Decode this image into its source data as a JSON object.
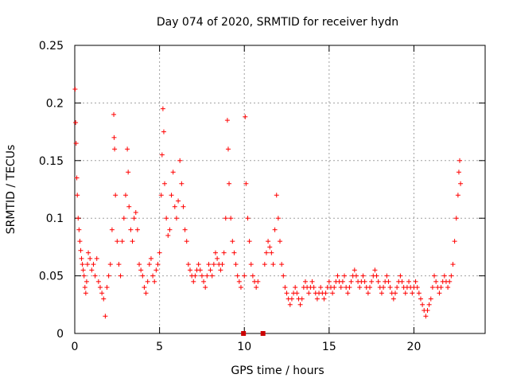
{
  "chart_data": {
    "type": "scatter",
    "title": "Day 074 of 2020, SRMTID for receiver hydn",
    "xlabel": "GPS time / hours",
    "ylabel": "SRMTID / TECUs",
    "xlim": [
      0,
      24.2
    ],
    "ylim": [
      0,
      0.25
    ],
    "grid": true,
    "x_ticks": [
      0,
      5,
      10,
      15,
      20
    ],
    "x_tick_labels": [
      "0",
      "5",
      "10",
      "15",
      "20"
    ],
    "y_ticks": [
      0,
      0.05,
      0.1,
      0.15,
      0.2,
      0.25
    ],
    "y_tick_labels": [
      "0",
      "0.05",
      "0.1",
      "0.15",
      "0.2",
      "0.25"
    ],
    "marker": "+",
    "series_color": "#ff0000",
    "gap_marker_color": "#cc0000",
    "data_gaps_hours": [
      9.95,
      11.1
    ],
    "series": [
      {
        "name": "SRMTID",
        "points": [
          [
            0.02,
            0.212
          ],
          [
            0.05,
            0.183
          ],
          [
            0.08,
            0.165
          ],
          [
            0.12,
            0.135
          ],
          [
            0.15,
            0.12
          ],
          [
            0.2,
            0.1
          ],
          [
            0.25,
            0.09
          ],
          [
            0.3,
            0.08
          ],
          [
            0.35,
            0.072
          ],
          [
            0.4,
            0.065
          ],
          [
            0.45,
            0.06
          ],
          [
            0.5,
            0.055
          ],
          [
            0.55,
            0.05
          ],
          [
            0.6,
            0.04
          ],
          [
            0.65,
            0.035
          ],
          [
            0.7,
            0.045
          ],
          [
            0.75,
            0.06
          ],
          [
            0.8,
            0.07
          ],
          [
            0.9,
            0.065
          ],
          [
            1.0,
            0.055
          ],
          [
            1.1,
            0.06
          ],
          [
            1.2,
            0.05
          ],
          [
            1.3,
            0.065
          ],
          [
            1.4,
            0.045
          ],
          [
            1.5,
            0.04
          ],
          [
            1.6,
            0.035
          ],
          [
            1.7,
            0.03
          ],
          [
            1.8,
            0.015
          ],
          [
            1.9,
            0.04
          ],
          [
            2.0,
            0.05
          ],
          [
            2.1,
            0.06
          ],
          [
            2.2,
            0.09
          ],
          [
            2.3,
            0.19
          ],
          [
            2.32,
            0.17
          ],
          [
            2.35,
            0.16
          ],
          [
            2.4,
            0.12
          ],
          [
            2.5,
            0.08
          ],
          [
            2.6,
            0.06
          ],
          [
            2.7,
            0.05
          ],
          [
            2.8,
            0.08
          ],
          [
            2.9,
            0.1
          ],
          [
            3.0,
            0.12
          ],
          [
            3.1,
            0.16
          ],
          [
            3.15,
            0.14
          ],
          [
            3.2,
            0.11
          ],
          [
            3.3,
            0.09
          ],
          [
            3.4,
            0.08
          ],
          [
            3.5,
            0.1
          ],
          [
            3.6,
            0.105
          ],
          [
            3.7,
            0.09
          ],
          [
            3.8,
            0.06
          ],
          [
            3.9,
            0.055
          ],
          [
            4.0,
            0.05
          ],
          [
            4.1,
            0.04
          ],
          [
            4.2,
            0.035
          ],
          [
            4.3,
            0.045
          ],
          [
            4.4,
            0.06
          ],
          [
            4.5,
            0.065
          ],
          [
            4.6,
            0.05
          ],
          [
            4.7,
            0.045
          ],
          [
            4.8,
            0.055
          ],
          [
            4.9,
            0.06
          ],
          [
            5.0,
            0.07
          ],
          [
            5.1,
            0.12
          ],
          [
            5.15,
            0.155
          ],
          [
            5.2,
            0.195
          ],
          [
            5.25,
            0.175
          ],
          [
            5.3,
            0.13
          ],
          [
            5.4,
            0.1
          ],
          [
            5.5,
            0.085
          ],
          [
            5.6,
            0.09
          ],
          [
            5.7,
            0.12
          ],
          [
            5.8,
            0.14
          ],
          [
            5.9,
            0.11
          ],
          [
            6.0,
            0.1
          ],
          [
            6.1,
            0.115
          ],
          [
            6.2,
            0.15
          ],
          [
            6.3,
            0.13
          ],
          [
            6.4,
            0.11
          ],
          [
            6.5,
            0.09
          ],
          [
            6.6,
            0.08
          ],
          [
            6.7,
            0.06
          ],
          [
            6.8,
            0.055
          ],
          [
            6.9,
            0.05
          ],
          [
            7.0,
            0.045
          ],
          [
            7.1,
            0.05
          ],
          [
            7.2,
            0.055
          ],
          [
            7.3,
            0.06
          ],
          [
            7.4,
            0.055
          ],
          [
            7.5,
            0.05
          ],
          [
            7.6,
            0.045
          ],
          [
            7.7,
            0.04
          ],
          [
            7.8,
            0.05
          ],
          [
            7.9,
            0.06
          ],
          [
            8.0,
            0.055
          ],
          [
            8.1,
            0.05
          ],
          [
            8.2,
            0.06
          ],
          [
            8.3,
            0.07
          ],
          [
            8.4,
            0.065
          ],
          [
            8.5,
            0.06
          ],
          [
            8.6,
            0.055
          ],
          [
            8.7,
            0.06
          ],
          [
            8.8,
            0.07
          ],
          [
            8.9,
            0.1
          ],
          [
            9.0,
            0.185
          ],
          [
            9.05,
            0.16
          ],
          [
            9.1,
            0.13
          ],
          [
            9.2,
            0.1
          ],
          [
            9.3,
            0.08
          ],
          [
            9.4,
            0.07
          ],
          [
            9.5,
            0.06
          ],
          [
            9.6,
            0.05
          ],
          [
            9.7,
            0.045
          ],
          [
            9.8,
            0.04
          ],
          [
            10.0,
            0.05
          ],
          [
            10.05,
            0.188
          ],
          [
            10.1,
            0.13
          ],
          [
            10.2,
            0.1
          ],
          [
            10.3,
            0.08
          ],
          [
            10.4,
            0.06
          ],
          [
            10.5,
            0.05
          ],
          [
            10.6,
            0.045
          ],
          [
            10.7,
            0.04
          ],
          [
            10.8,
            0.045
          ],
          [
            11.2,
            0.06
          ],
          [
            11.3,
            0.07
          ],
          [
            11.4,
            0.08
          ],
          [
            11.5,
            0.075
          ],
          [
            11.6,
            0.07
          ],
          [
            11.7,
            0.06
          ],
          [
            11.8,
            0.09
          ],
          [
            11.9,
            0.12
          ],
          [
            12.0,
            0.1
          ],
          [
            12.1,
            0.08
          ],
          [
            12.2,
            0.06
          ],
          [
            12.3,
            0.05
          ],
          [
            12.4,
            0.04
          ],
          [
            12.5,
            0.035
          ],
          [
            12.6,
            0.03
          ],
          [
            12.7,
            0.025
          ],
          [
            12.8,
            0.03
          ],
          [
            12.9,
            0.035
          ],
          [
            13.0,
            0.04
          ],
          [
            13.1,
            0.035
          ],
          [
            13.2,
            0.03
          ],
          [
            13.3,
            0.025
          ],
          [
            13.4,
            0.03
          ],
          [
            13.5,
            0.04
          ],
          [
            13.6,
            0.045
          ],
          [
            13.7,
            0.04
          ],
          [
            13.8,
            0.035
          ],
          [
            13.9,
            0.04
          ],
          [
            14.0,
            0.045
          ],
          [
            14.1,
            0.04
          ],
          [
            14.2,
            0.035
          ],
          [
            14.3,
            0.03
          ],
          [
            14.4,
            0.035
          ],
          [
            14.5,
            0.04
          ],
          [
            14.6,
            0.035
          ],
          [
            14.7,
            0.03
          ],
          [
            14.8,
            0.035
          ],
          [
            14.9,
            0.04
          ],
          [
            15.0,
            0.045
          ],
          [
            15.1,
            0.04
          ],
          [
            15.2,
            0.035
          ],
          [
            15.3,
            0.04
          ],
          [
            15.4,
            0.045
          ],
          [
            15.5,
            0.05
          ],
          [
            15.6,
            0.045
          ],
          [
            15.7,
            0.04
          ],
          [
            15.8,
            0.045
          ],
          [
            15.9,
            0.05
          ],
          [
            16.0,
            0.04
          ],
          [
            16.1,
            0.035
          ],
          [
            16.2,
            0.04
          ],
          [
            16.3,
            0.045
          ],
          [
            16.4,
            0.05
          ],
          [
            16.5,
            0.055
          ],
          [
            16.6,
            0.05
          ],
          [
            16.7,
            0.045
          ],
          [
            16.8,
            0.04
          ],
          [
            16.9,
            0.045
          ],
          [
            17.0,
            0.05
          ],
          [
            17.1,
            0.045
          ],
          [
            17.2,
            0.04
          ],
          [
            17.3,
            0.035
          ],
          [
            17.4,
            0.04
          ],
          [
            17.5,
            0.045
          ],
          [
            17.6,
            0.05
          ],
          [
            17.7,
            0.055
          ],
          [
            17.8,
            0.05
          ],
          [
            17.9,
            0.045
          ],
          [
            18.0,
            0.04
          ],
          [
            18.1,
            0.035
          ],
          [
            18.2,
            0.04
          ],
          [
            18.3,
            0.045
          ],
          [
            18.4,
            0.05
          ],
          [
            18.5,
            0.045
          ],
          [
            18.6,
            0.04
          ],
          [
            18.7,
            0.035
          ],
          [
            18.8,
            0.03
          ],
          [
            18.9,
            0.035
          ],
          [
            19.0,
            0.04
          ],
          [
            19.1,
            0.045
          ],
          [
            19.2,
            0.05
          ],
          [
            19.3,
            0.045
          ],
          [
            19.4,
            0.04
          ],
          [
            19.5,
            0.035
          ],
          [
            19.6,
            0.04
          ],
          [
            19.7,
            0.045
          ],
          [
            19.8,
            0.04
          ],
          [
            19.9,
            0.035
          ],
          [
            20.0,
            0.04
          ],
          [
            20.1,
            0.045
          ],
          [
            20.2,
            0.04
          ],
          [
            20.3,
            0.035
          ],
          [
            20.4,
            0.03
          ],
          [
            20.5,
            0.025
          ],
          [
            20.6,
            0.02
          ],
          [
            20.7,
            0.015
          ],
          [
            20.8,
            0.02
          ],
          [
            20.9,
            0.025
          ],
          [
            21.0,
            0.03
          ],
          [
            21.1,
            0.04
          ],
          [
            21.2,
            0.05
          ],
          [
            21.3,
            0.045
          ],
          [
            21.4,
            0.04
          ],
          [
            21.5,
            0.035
          ],
          [
            21.6,
            0.04
          ],
          [
            21.7,
            0.045
          ],
          [
            21.8,
            0.05
          ],
          [
            21.9,
            0.045
          ],
          [
            22.0,
            0.04
          ],
          [
            22.1,
            0.045
          ],
          [
            22.2,
            0.05
          ],
          [
            22.3,
            0.06
          ],
          [
            22.4,
            0.08
          ],
          [
            22.5,
            0.1
          ],
          [
            22.6,
            0.12
          ],
          [
            22.65,
            0.14
          ],
          [
            22.7,
            0.15
          ],
          [
            22.75,
            0.13
          ]
        ]
      }
    ]
  }
}
